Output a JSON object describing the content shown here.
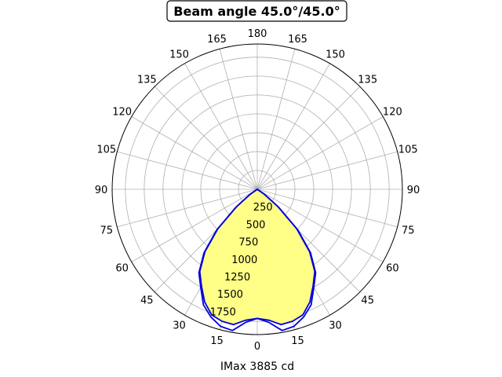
{
  "chart_data": {
    "type": "polar",
    "title": "Beam angle 45.0°/45.0°",
    "xlabel": "IMax 3885 cd",
    "angle_tick_labels": [
      "0",
      "15",
      "30",
      "45",
      "60",
      "75",
      "90",
      "105",
      "120",
      "135",
      "150",
      "165",
      "180",
      "165",
      "150",
      "135",
      "120",
      "105",
      "90",
      "75",
      "60",
      "45",
      "30",
      "15"
    ],
    "radial_ticks": [
      250,
      500,
      750,
      1000,
      1250,
      1500,
      1750
    ],
    "radial_tick_labels": [
      "250",
      "500",
      "750",
      "1000",
      "1250",
      "1500",
      "1750"
    ],
    "rlim": [
      0,
      1925
    ],
    "grid": true,
    "colors": {
      "curve": "#0000dd",
      "fill": "#ffff88",
      "grid": "#b0b0b0"
    },
    "series": [
      {
        "angles_deg": [
          0,
          5,
          10,
          15,
          20,
          25,
          30,
          35,
          40,
          45,
          50,
          55,
          60
        ],
        "values": [
          1710,
          1770,
          1900,
          1880,
          1800,
          1690,
          1500,
          1350,
          1100,
          760,
          370,
          120,
          0
        ]
      },
      {
        "angles_deg": [
          0,
          5,
          10,
          15,
          20,
          25,
          30,
          35,
          40,
          45,
          50,
          55,
          60
        ],
        "values": [
          1710,
          1740,
          1820,
          1810,
          1770,
          1650,
          1480,
          1330,
          1080,
          740,
          360,
          110,
          0
        ]
      }
    ]
  }
}
